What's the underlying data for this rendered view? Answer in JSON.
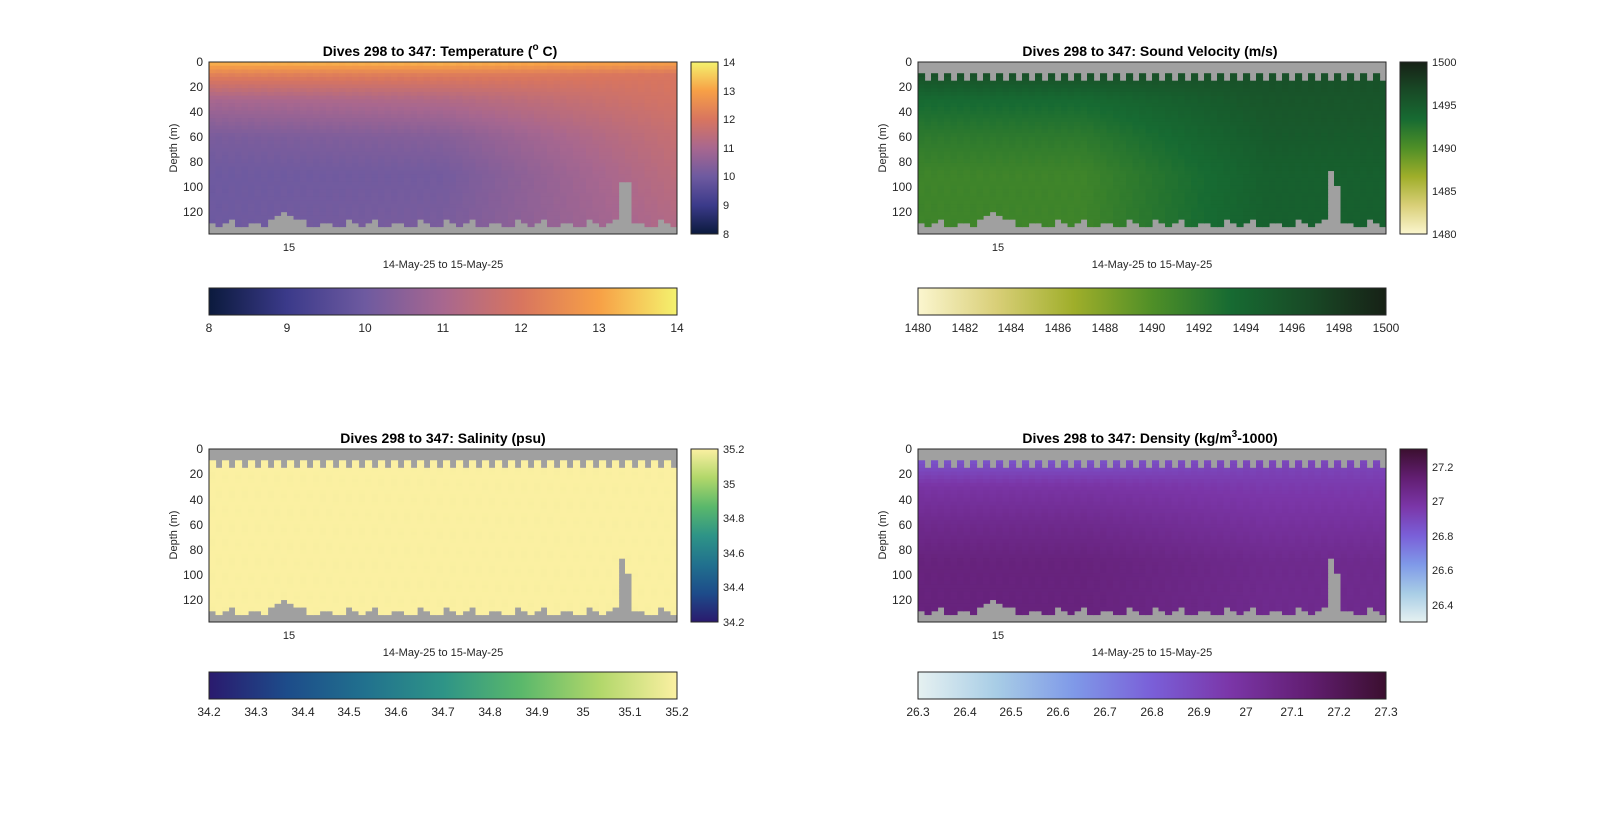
{
  "figure": {
    "panels": [
      {
        "title_main": "Dives 298 to 347: Temperature (",
        "title_sup": "o",
        "title_tail": " C)",
        "ylabel": "Depth (m)",
        "xlabel": "14-May-25 to 15-May-25",
        "xtick_labels": [
          "15"
        ],
        "ytick_labels": [
          "0",
          "20",
          "40",
          "60",
          "80",
          "100",
          "120"
        ],
        "side_colorbar_ticks": [
          "14",
          "13",
          "12",
          "11",
          "10",
          "9",
          "8"
        ],
        "bottom_colorbar_ticks": [
          "8",
          "9",
          "10",
          "11",
          "12",
          "13",
          "14"
        ]
      },
      {
        "title_main": "Dives 298 to 347: Sound Velocity (m/s)",
        "title_sup": "",
        "title_tail": "",
        "ylabel": "Depth (m)",
        "xlabel": "14-May-25 to 15-May-25",
        "xtick_labels": [
          "15"
        ],
        "ytick_labels": [
          "0",
          "20",
          "40",
          "60",
          "80",
          "100",
          "120"
        ],
        "side_colorbar_ticks": [
          "1500",
          "1495",
          "1490",
          "1485",
          "1480"
        ],
        "bottom_colorbar_ticks": [
          "1480",
          "1482",
          "1484",
          "1486",
          "1488",
          "1490",
          "1492",
          "1494",
          "1496",
          "1498",
          "1500"
        ]
      },
      {
        "title_main": "Dives 298 to 347: Salinity (psu)",
        "title_sup": "",
        "title_tail": "",
        "ylabel": "Depth (m)",
        "xlabel": "14-May-25 to 15-May-25",
        "xtick_labels": [
          "15"
        ],
        "ytick_labels": [
          "0",
          "20",
          "40",
          "60",
          "80",
          "100",
          "120"
        ],
        "side_colorbar_ticks": [
          "35.2",
          "35",
          "34.8",
          "34.6",
          "34.4",
          "34.2"
        ],
        "bottom_colorbar_ticks": [
          "34.2",
          "34.3",
          "34.4",
          "34.5",
          "34.6",
          "34.7",
          "34.8",
          "34.9",
          "35",
          "35.1",
          "35.2"
        ]
      },
      {
        "title_main": "Dives 298 to 347: Density (kg/m",
        "title_sup": "3",
        "title_tail": "-1000)",
        "ylabel": "Depth (m)",
        "xlabel": "14-May-25 to 15-May-25",
        "xtick_labels": [
          "15"
        ],
        "ytick_labels": [
          "0",
          "20",
          "40",
          "60",
          "80",
          "100",
          "120"
        ],
        "side_colorbar_ticks": [
          "27.2",
          "27",
          "26.8",
          "26.6",
          "26.4"
        ],
        "bottom_colorbar_ticks": [
          "26.3",
          "26.4",
          "26.5",
          "26.6",
          "26.7",
          "26.8",
          "26.9",
          "27",
          "27.1",
          "27.2",
          "27.3"
        ]
      }
    ]
  },
  "chart_data": [
    {
      "type": "heatmap",
      "variable": "Temperature",
      "unit": "°C",
      "dives": [
        298,
        347
      ],
      "x_range_text": "14-May-25 to 15-May-25",
      "y_axis": {
        "label": "Depth (m)",
        "ylim": [
          0,
          138
        ],
        "reversed": true,
        "ticks": [
          0,
          20,
          40,
          60,
          80,
          100,
          120
        ]
      },
      "colorbar": {
        "clim": [
          8,
          14
        ],
        "colormap": "thermal",
        "colors": [
          "#0b1a3d",
          "#3b3a8a",
          "#6e5aa0",
          "#a8678f",
          "#d8755f",
          "#f7a046",
          "#f4f26e"
        ]
      },
      "background_color": "#a0a0a0",
      "profile_samples": [
        {
          "position": "early",
          "depth_m": [
            0,
            10,
            30,
            60,
            90,
            130
          ],
          "value": [
            13.3,
            12.3,
            11.0,
            10.2,
            10.0,
            10.0
          ]
        },
        {
          "position": "mid",
          "depth_m": [
            0,
            10,
            30,
            60,
            90,
            130
          ],
          "value": [
            13.3,
            12.2,
            11.2,
            10.4,
            10.1,
            10.2
          ]
        },
        {
          "position": "late",
          "depth_m": [
            0,
            10,
            30,
            60,
            90,
            130
          ],
          "value": [
            13.0,
            12.0,
            11.9,
            11.6,
            11.4,
            11.2
          ]
        }
      ]
    },
    {
      "type": "heatmap",
      "variable": "Sound Velocity",
      "unit": "m/s",
      "dives": [
        298,
        347
      ],
      "x_range_text": "14-May-25 to 15-May-25",
      "y_axis": {
        "label": "Depth (m)",
        "ylim": [
          0,
          138
        ],
        "reversed": true,
        "ticks": [
          0,
          20,
          40,
          60,
          80,
          100,
          120
        ]
      },
      "colorbar": {
        "clim": [
          1480,
          1500
        ],
        "colormap": "speed",
        "colors": [
          "#fbf6cf",
          "#d9cf78",
          "#9fae2a",
          "#4f8f27",
          "#176b32",
          "#184a26",
          "#172116"
        ]
      },
      "background_color": "#a0a0a0",
      "profile_samples": [
        {
          "position": "early",
          "depth_m": [
            10,
            30,
            60,
            90,
            130
          ],
          "value": [
            1496.0,
            1493.5,
            1492.0,
            1491.0,
            1491.0
          ]
        },
        {
          "position": "late",
          "depth_m": [
            10,
            30,
            60,
            90,
            130
          ],
          "value": [
            1496.0,
            1495.5,
            1495.0,
            1494.5,
            1494.5
          ]
        }
      ]
    },
    {
      "type": "heatmap",
      "variable": "Salinity",
      "unit": "psu",
      "dives": [
        298,
        347
      ],
      "x_range_text": "14-May-25 to 15-May-25",
      "y_axis": {
        "label": "Depth (m)",
        "ylim": [
          0,
          138
        ],
        "reversed": true,
        "ticks": [
          0,
          20,
          40,
          60,
          80,
          100,
          120
        ]
      },
      "colorbar": {
        "clim": [
          34.2,
          35.2
        ],
        "colormap": "haline",
        "colors": [
          "#2a1a6e",
          "#1d4c8a",
          "#21718e",
          "#2e9487",
          "#5ab86b",
          "#b1d76a",
          "#fbf0a2"
        ]
      },
      "background_color": "#a0a0a0",
      "profile_samples": [
        {
          "position": "all",
          "depth_m": [
            10,
            130
          ],
          "value": [
            35.2,
            35.2
          ]
        }
      ]
    },
    {
      "type": "heatmap",
      "variable": "Density",
      "unit": "kg/m3-1000",
      "dives": [
        298,
        347
      ],
      "x_range_text": "14-May-25 to 15-May-25",
      "y_axis": {
        "label": "Depth (m)",
        "ylim": [
          0,
          138
        ],
        "reversed": true,
        "ticks": [
          0,
          20,
          40,
          60,
          80,
          100,
          120
        ]
      },
      "colorbar": {
        "clim": [
          26.3,
          27.3
        ],
        "colormap": "dense",
        "colors": [
          "#e6f1f1",
          "#a8cde6",
          "#7f99e8",
          "#7a5fd8",
          "#7b36a8",
          "#621e72",
          "#3b0f2f"
        ]
      },
      "background_color": "#a0a0a0",
      "profile_samples": [
        {
          "position": "early",
          "depth_m": [
            10,
            30,
            60,
            90,
            130
          ],
          "value": [
            26.85,
            26.98,
            27.05,
            27.1,
            27.1
          ]
        },
        {
          "position": "late",
          "depth_m": [
            10,
            30,
            60,
            90,
            130
          ],
          "value": [
            26.9,
            26.95,
            27.0,
            27.05,
            27.05
          ]
        }
      ]
    }
  ]
}
